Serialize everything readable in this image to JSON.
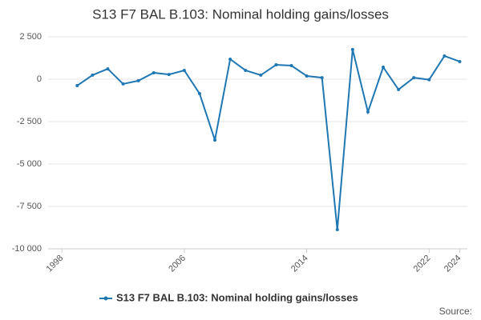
{
  "chart_data": {
    "type": "line",
    "title": "S13 F7 BAL B.103: Nominal holding gains/losses",
    "x": [
      1999,
      2000,
      2001,
      2002,
      2003,
      2004,
      2005,
      2006,
      2007,
      2008,
      2009,
      2010,
      2011,
      2012,
      2013,
      2014,
      2015,
      2016,
      2017,
      2018,
      2019,
      2020,
      2021,
      2022,
      2023,
      2024
    ],
    "series": [
      {
        "name": "S13 F7 BAL B.103: Nominal holding gains/losses",
        "color": "#1f77b4",
        "values": [
          -380,
          240,
          610,
          -280,
          -90,
          380,
          280,
          520,
          -850,
          -3590,
          1180,
          520,
          240,
          850,
          800,
          190,
          90,
          -8870,
          1750,
          -1930,
          710,
          -610,
          90,
          -30,
          1370,
          1040
        ]
      }
    ],
    "xlim": [
      1997.1,
      2024.5
    ],
    "xticks": [
      1998,
      2006,
      2014,
      2022,
      2024
    ],
    "ylim": [
      -10000,
      2500
    ],
    "yticks": [
      {
        "value": 2500,
        "label": "2 500"
      },
      0,
      {
        "value": -2500,
        "label": "-2 500"
      },
      {
        "value": -5000,
        "label": "-5 000"
      },
      {
        "value": -7500,
        "label": "-7 500"
      },
      {
        "value": -10000,
        "label": "-10 000"
      }
    ],
    "grid": true,
    "legend": "bottom",
    "source": "Source:"
  }
}
